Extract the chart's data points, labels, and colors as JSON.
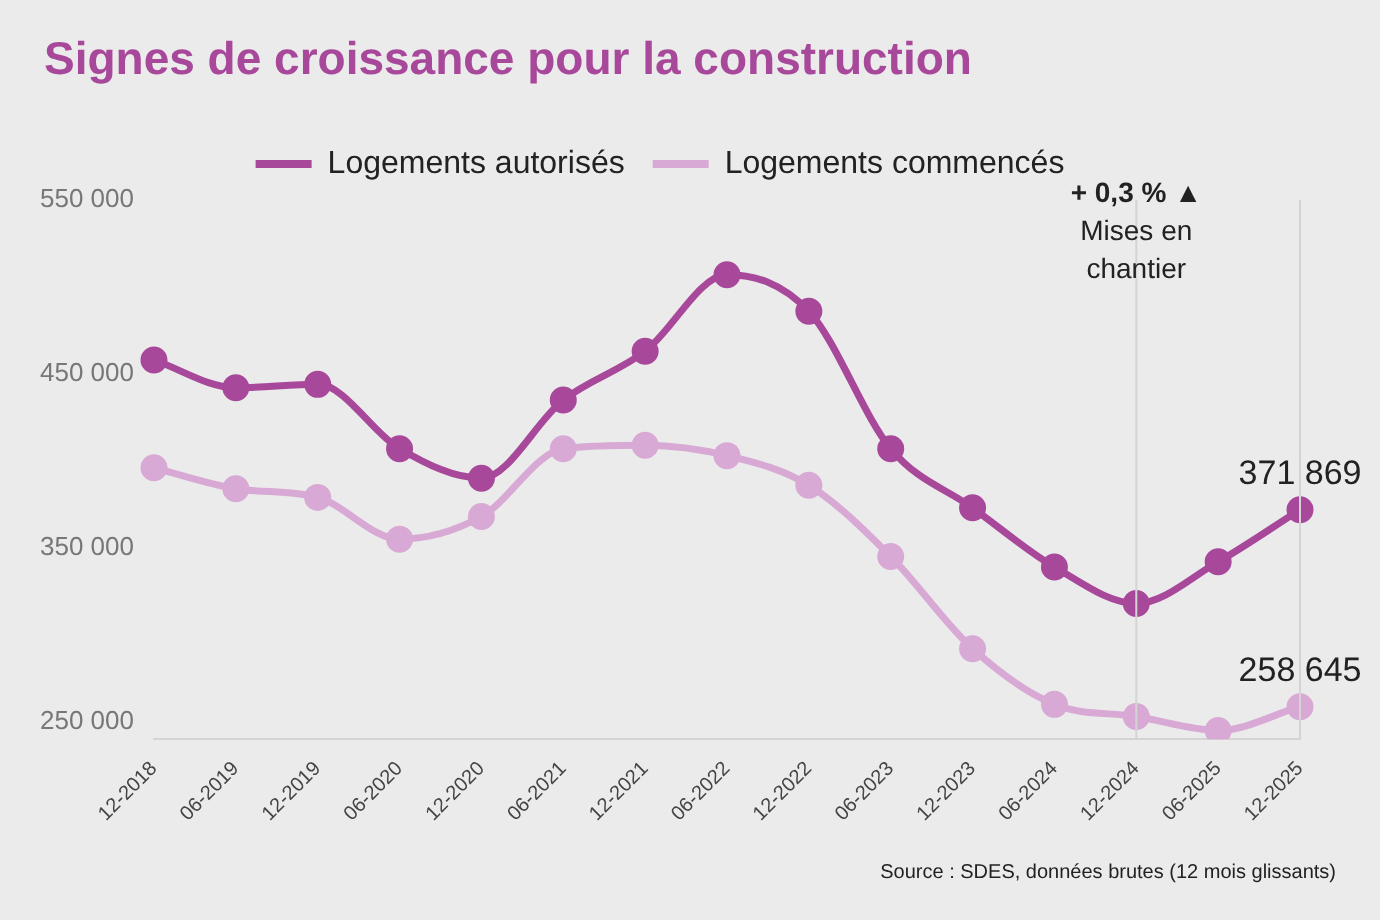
{
  "chart_data": {
    "type": "line",
    "title": "Signes de croissance pour la construction",
    "categories": [
      "12-2018",
      "06-2019",
      "12-2019",
      "06-2020",
      "12-2020",
      "06-2021",
      "12-2021",
      "06-2022",
      "12-2022",
      "06-2023",
      "12-2023",
      "06-2024",
      "12-2024",
      "06-2025",
      "12-2025"
    ],
    "series": [
      {
        "name": "Logements autorisés",
        "color": "#a8489a",
        "values": [
          458000,
          442000,
          444000,
          407000,
          390000,
          435000,
          463000,
          507000,
          486000,
          407000,
          373000,
          339000,
          318000,
          342000,
          371869
        ],
        "value_labels": [
          null,
          null,
          null,
          null,
          null,
          null,
          null,
          null,
          null,
          null,
          null,
          null,
          null,
          null,
          "371 869"
        ]
      },
      {
        "name": "Logements commencés",
        "color": "#d8a9d4",
        "values": [
          396000,
          384000,
          379000,
          355000,
          368000,
          407000,
          409000,
          403000,
          386000,
          345000,
          292000,
          260000,
          253000,
          245000,
          258645
        ],
        "value_labels": [
          null,
          null,
          null,
          null,
          null,
          null,
          null,
          null,
          null,
          null,
          null,
          null,
          null,
          null,
          "258 645"
        ]
      }
    ],
    "ylim": [
      240000,
      550000
    ],
    "yticks": [
      {
        "value": 250000,
        "label": "250 000"
      },
      {
        "value": 350000,
        "label": "350 000"
      },
      {
        "value": 450000,
        "label": "450 000"
      },
      {
        "value": 550000,
        "label": "550 000"
      }
    ],
    "ref_lines": [
      {
        "axis": "x",
        "value": "12-2024",
        "label": "+ 0,3 % ▲ Mises en chantier",
        "color": "#d4d4d4"
      },
      {
        "axis": "x",
        "value": "12-2025",
        "color": "#d4d4d4"
      }
    ],
    "annotations": [
      "Source : SDES, données brutes (12 mois glissants)"
    ],
    "grid": false,
    "legend": "top",
    "marker": "circle",
    "line_style": "solid"
  }
}
